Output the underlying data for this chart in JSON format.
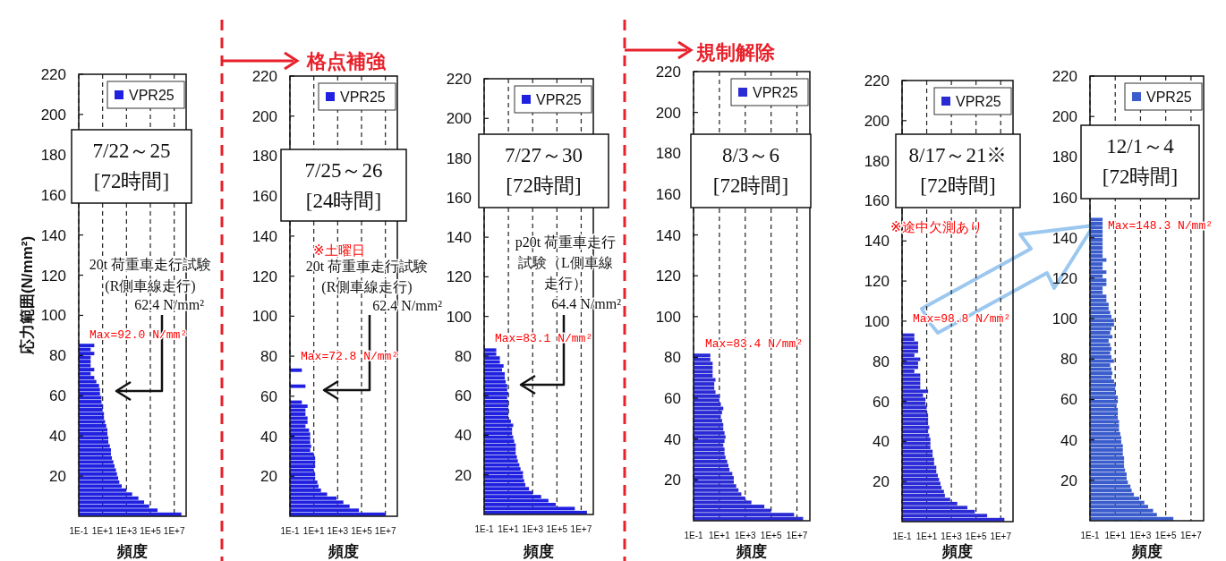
{
  "chart_data": [
    {
      "type": "histogram",
      "orientation": "horizontal",
      "log": "x",
      "grid": "x",
      "legend": "top right",
      "xlabel": "頻度",
      "ylabel": "応力範囲(N/mm²)",
      "xlim": [
        0.1,
        100000000
      ],
      "xticks": [
        {
          "value": 0.1,
          "label": "1E-1"
        },
        {
          "value": 10,
          "label": "1E+1"
        },
        {
          "value": 1000,
          "label": "1E+3"
        },
        {
          "value": 100000,
          "label": "1E+5"
        },
        {
          "value": 10000000,
          "label": "1E+7"
        }
      ],
      "ylim": [
        0,
        220
      ],
      "yticks": [
        20,
        40,
        60,
        80,
        100,
        120,
        140,
        160,
        180,
        200,
        220
      ],
      "bins": [
        0,
        2,
        4,
        6,
        8,
        10,
        12,
        14,
        16,
        18,
        20,
        22,
        24,
        26,
        28,
        30,
        32,
        34,
        36,
        38,
        40,
        42,
        44,
        46,
        48,
        50,
        52,
        54,
        56,
        58,
        60,
        62,
        64,
        66,
        68,
        70,
        72,
        74,
        76,
        78,
        80,
        82,
        84,
        86
      ],
      "series": [
        {
          "name": "VPR25",
          "color": "#2020e0",
          "values": [
            40000000,
            400000,
            80000,
            30000,
            10000,
            3000,
            1000,
            400,
            250,
            200,
            160,
            130,
            100,
            80,
            60,
            50,
            50,
            40,
            30,
            30,
            25,
            25,
            20,
            16,
            13,
            13,
            10,
            10,
            8,
            8,
            6,
            6,
            5,
            3,
            2,
            1,
            2,
            1,
            1,
            1,
            2,
            1,
            2
          ]
        }
      ],
      "annotations": [
        "7/22～25\n[72時間]",
        "20t 荷重車走行試験 (R側車線走行)",
        "62.4 N/mm²",
        "Max=92.0 N/mm²"
      ]
    },
    {
      "type": "histogram",
      "orientation": "horizontal",
      "log": "x",
      "grid": "x",
      "legend": "top right",
      "xlabel": "頻度",
      "xlim": [
        0.1,
        100000000
      ],
      "xticks": [
        {
          "value": 0.1,
          "label": "1E-1"
        },
        {
          "value": 10,
          "label": "1E+1"
        },
        {
          "value": 1000,
          "label": "1E+3"
        },
        {
          "value": 100000,
          "label": "1E+5"
        },
        {
          "value": 10000000,
          "label": "1E+7"
        }
      ],
      "ylim": [
        0,
        220
      ],
      "yticks": [
        20,
        40,
        60,
        80,
        100,
        120,
        140,
        160,
        180,
        200,
        220
      ],
      "bins": [
        0,
        2,
        4,
        6,
        8,
        10,
        12,
        14,
        16,
        18,
        20,
        22,
        24,
        26,
        28,
        30,
        32,
        34,
        36,
        38,
        40,
        42,
        44,
        46,
        48,
        50,
        52,
        54,
        56,
        58,
        60,
        62,
        64,
        66,
        68,
        70,
        72,
        74
      ],
      "series": [
        {
          "name": "VPR25",
          "color": "#2020e0",
          "values": [
            10000000,
            60000,
            10000,
            3000,
            800,
            130,
            40,
            25,
            20,
            13,
            13,
            10,
            13,
            13,
            13,
            10,
            5,
            6,
            5,
            5,
            5,
            4,
            2,
            3,
            3,
            2,
            2,
            3,
            1,
            null,
            null,
            null,
            2,
            null,
            null,
            null,
            1
          ]
        }
      ],
      "annotations": [
        "格点補強",
        "7/25～26\n[24時間]",
        "※土曜日",
        "20t 荷重車走行試験 (R側車線走行)",
        "62.4 N/mm²",
        "Max=72.8 N/mm²"
      ]
    },
    {
      "type": "histogram",
      "orientation": "horizontal",
      "log": "x",
      "grid": "x",
      "legend": "top right",
      "xlabel": "頻度",
      "xlim": [
        0.1,
        100000000
      ],
      "xticks": [
        {
          "value": 0.1,
          "label": "1E-1"
        },
        {
          "value": 10,
          "label": "1E+1"
        },
        {
          "value": 1000,
          "label": "1E+3"
        },
        {
          "value": 100000,
          "label": "1E+5"
        },
        {
          "value": 10000000,
          "label": "1E+7"
        }
      ],
      "ylim": [
        0,
        220
      ],
      "yticks": [
        20,
        40,
        60,
        80,
        100,
        120,
        140,
        160,
        180,
        200,
        220
      ],
      "bins": [
        0,
        2,
        4,
        6,
        8,
        10,
        12,
        14,
        16,
        18,
        20,
        22,
        24,
        26,
        28,
        30,
        32,
        34,
        36,
        38,
        40,
        42,
        44,
        46,
        48,
        50,
        52,
        54,
        56,
        58,
        60,
        62,
        64,
        66,
        68,
        70,
        72,
        74,
        76,
        78,
        80,
        82,
        84
      ],
      "series": [
        {
          "name": "VPR25",
          "color": "#2020e0",
          "values": [
            30000000,
            3000000,
            80000,
            20000,
            5000,
            1000,
            500,
            250,
            200,
            160,
            160,
            100,
            80,
            60,
            50,
            40,
            40,
            40,
            30,
            25,
            20,
            20,
            25,
            16,
            10,
            10,
            10,
            10,
            10,
            8,
            10,
            8,
            8,
            6,
            5,
            5,
            3,
            4,
            2,
            2,
            1,
            1
          ]
        }
      ],
      "annotations": [
        "7/27～30\n[72時間]",
        "p20t 荷重車走行試験（L側車線走行）",
        "64.4 N/mm²",
        "Max=83.1 N/mm²"
      ]
    },
    {
      "type": "histogram",
      "orientation": "horizontal",
      "log": "x",
      "grid": "x",
      "legend": "top right",
      "xlabel": "頻度",
      "xlim": [
        0.1,
        100000000
      ],
      "xticks": [
        {
          "value": 0.1,
          "label": "1E-1"
        },
        {
          "value": 10,
          "label": "1E+1"
        },
        {
          "value": 1000,
          "label": "1E+3"
        },
        {
          "value": 100000,
          "label": "1E+5"
        },
        {
          "value": 10000000,
          "label": "1E+7"
        }
      ],
      "ylim": [
        0,
        220
      ],
      "yticks": [
        20,
        40,
        60,
        80,
        100,
        120,
        140,
        160,
        180,
        200,
        220
      ],
      "bins": [
        0,
        2,
        4,
        6,
        8,
        10,
        12,
        14,
        16,
        18,
        20,
        22,
        24,
        26,
        28,
        30,
        32,
        34,
        36,
        38,
        40,
        42,
        44,
        46,
        48,
        50,
        52,
        54,
        56,
        58,
        60,
        62,
        64,
        66,
        68,
        70,
        72,
        74,
        76,
        78,
        80,
        82
      ],
      "series": [
        {
          "name": "VPR25",
          "color": "#2b2bd6",
          "values": [
            30000000,
            6000000,
            100000,
            30000,
            3000,
            1000,
            500,
            300,
            200,
            130,
            130,
            100,
            60,
            50,
            40,
            30,
            25,
            25,
            20,
            25,
            30,
            25,
            20,
            20,
            16,
            13,
            16,
            20,
            13,
            10,
            10,
            5,
            4,
            4,
            5,
            3,
            3,
            3,
            3,
            2,
            2
          ]
        }
      ],
      "annotations": [
        "規制解除",
        "8/3～6\n[72時間]",
        "Max=83.4 N/mm²"
      ]
    },
    {
      "type": "histogram",
      "orientation": "horizontal",
      "log": "x",
      "grid": "x",
      "legend": "top right",
      "xlabel": "頻度",
      "xlim": [
        0.1,
        100000000
      ],
      "xticks": [
        {
          "value": 0.1,
          "label": "1E-1"
        },
        {
          "value": 10,
          "label": "1E+1"
        },
        {
          "value": 1000,
          "label": "1E+3"
        },
        {
          "value": 100000,
          "label": "1E+5"
        },
        {
          "value": 10000000,
          "label": "1E+7"
        }
      ],
      "ylim": [
        0,
        220
      ],
      "yticks": [
        20,
        40,
        60,
        80,
        100,
        120,
        140,
        160,
        180,
        200,
        220
      ],
      "bins": [
        0,
        2,
        4,
        6,
        8,
        10,
        12,
        14,
        16,
        18,
        20,
        22,
        24,
        26,
        28,
        30,
        32,
        34,
        36,
        38,
        40,
        42,
        44,
        46,
        48,
        50,
        52,
        54,
        56,
        58,
        60,
        62,
        64,
        66,
        68,
        70,
        72,
        74,
        76,
        78,
        80,
        82,
        84,
        86,
        88,
        90,
        92,
        94
      ],
      "series": [
        {
          "name": "VPR25",
          "color": "#2b2bd6",
          "values": [
            20000000,
            800000,
            80000,
            20000,
            3000,
            800,
            300,
            250,
            160,
            130,
            100,
            80,
            60,
            60,
            40,
            40,
            30,
            30,
            20,
            20,
            20,
            16,
            13,
            16,
            13,
            13,
            13,
            10,
            10,
            8,
            8,
            5,
            13,
            3,
            3,
            3,
            3,
            1,
            2,
            2,
            3,
            1,
            2,
            2,
            2,
            1,
            1
          ]
        }
      ],
      "annotations": [
        "8/17～21※\n[72時間]",
        "※途中欠測あり",
        "Max=98.8 N/mm²"
      ]
    },
    {
      "type": "histogram",
      "orientation": "horizontal",
      "log": "x",
      "grid": "x",
      "legend": "top right",
      "xlabel": "頻度",
      "xlim": [
        0.1,
        100000000
      ],
      "xticks": [
        {
          "value": 0.1,
          "label": "1E-1"
        },
        {
          "value": 10,
          "label": "1E+1"
        },
        {
          "value": 1000,
          "label": "1E+3"
        },
        {
          "value": 100000,
          "label": "1E+5"
        },
        {
          "value": 10000000,
          "label": "1E+7"
        }
      ],
      "ylim": [
        0,
        220
      ],
      "yticks": [
        20,
        40,
        60,
        80,
        100,
        120,
        140,
        160,
        180,
        200,
        220
      ],
      "bins": [
        0,
        2,
        4,
        6,
        8,
        10,
        12,
        14,
        16,
        18,
        20,
        22,
        24,
        26,
        28,
        30,
        32,
        34,
        36,
        38,
        40,
        42,
        44,
        46,
        48,
        50,
        52,
        54,
        56,
        58,
        60,
        62,
        64,
        66,
        68,
        70,
        72,
        74,
        76,
        78,
        80,
        82,
        84,
        86,
        88,
        90,
        92,
        94,
        96,
        98,
        100,
        102,
        104,
        106,
        108,
        110,
        112,
        114,
        116,
        118,
        120,
        122,
        124,
        126,
        128,
        130,
        132,
        134,
        136,
        138,
        140,
        142,
        144,
        146,
        148,
        150
      ],
      "series": [
        {
          "name": "VPR25",
          "color": "#3a5ccc",
          "values": [
            400000,
            20000,
            10000,
            4000,
            2000,
            800,
            300,
            200,
            160,
            100,
            80,
            80,
            60,
            50,
            50,
            50,
            40,
            40,
            40,
            30,
            30,
            25,
            20,
            20,
            20,
            16,
            16,
            16,
            13,
            16,
            16,
            10,
            10,
            10,
            8,
            5,
            6,
            5,
            4,
            8,
            5,
            4,
            5,
            4,
            3,
            6,
            4,
            5,
            8,
            8,
            5,
            4,
            3,
            3,
            2,
            2,
            1,
            1,
            2,
            2,
            1,
            2,
            1,
            1,
            2,
            1,
            1,
            1,
            1,
            1,
            1,
            1,
            1,
            1,
            1
          ]
        }
      ],
      "annotations": [
        "12/1～4\n[72時間]",
        "Max=148.3 N/mm²"
      ]
    }
  ]
}
